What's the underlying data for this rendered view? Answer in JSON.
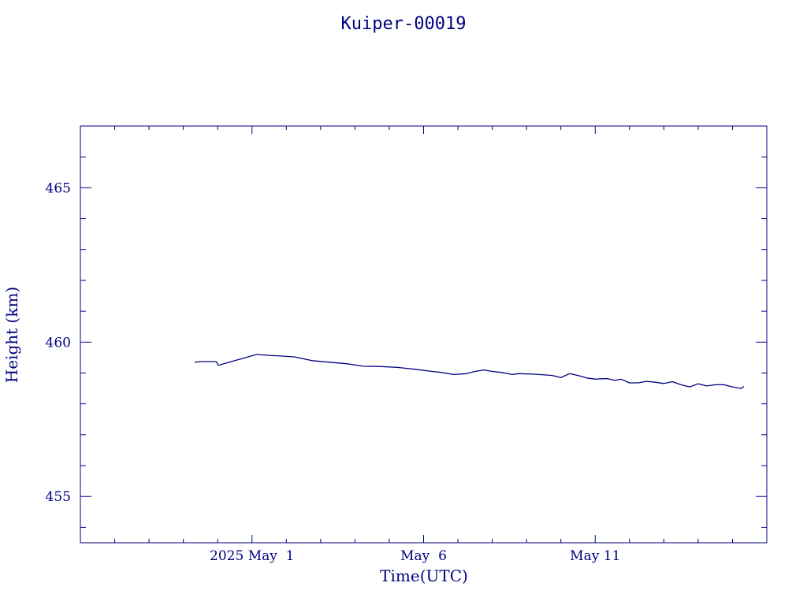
{
  "chart_data": {
    "type": "line",
    "title": "Kuiper-00019",
    "xlabel": "Time(UTC)",
    "ylabel": "Height (km)",
    "xlim": [
      "2025-04-26",
      "2025-05-16"
    ],
    "ylim": [
      453.5,
      467.0
    ],
    "x_tick_labels": [
      {
        "date": "2025-05-01",
        "label": "2025 May  1"
      },
      {
        "date": "2025-05-06",
        "label": "May  6"
      },
      {
        "date": "2025-05-11",
        "label": "May 11"
      }
    ],
    "y_tick_labels": [
      "455",
      "460",
      "465"
    ],
    "y_tick_values": [
      455,
      460,
      465
    ],
    "grid": false,
    "series": [
      {
        "color": "#000080",
        "points": [
          [
            "2025-04-29T08:00",
            459.35
          ],
          [
            "2025-04-29T12:00",
            459.37
          ],
          [
            "2025-04-29T18:00",
            459.37
          ],
          [
            "2025-04-29T23:00",
            459.37
          ],
          [
            "2025-04-30T00:30",
            459.25
          ],
          [
            "2025-04-30T06:00",
            459.32
          ],
          [
            "2025-04-30T12:00",
            459.4
          ],
          [
            "2025-04-30T18:00",
            459.48
          ],
          [
            "2025-05-01T03:00",
            459.6
          ],
          [
            "2025-05-01T12:00",
            459.57
          ],
          [
            "2025-05-01T20:00",
            459.55
          ],
          [
            "2025-05-02T06:00",
            459.52
          ],
          [
            "2025-05-02T18:00",
            459.4
          ],
          [
            "2025-05-03T06:00",
            459.35
          ],
          [
            "2025-05-03T18:00",
            459.3
          ],
          [
            "2025-05-04T06:00",
            459.22
          ],
          [
            "2025-05-04T18:00",
            459.21
          ],
          [
            "2025-05-05T06:00",
            459.18
          ],
          [
            "2025-05-05T18:00",
            459.12
          ],
          [
            "2025-05-06T06:00",
            459.05
          ],
          [
            "2025-05-06T12:00",
            459.02
          ],
          [
            "2025-05-06T21:00",
            458.95
          ],
          [
            "2025-05-07T06:00",
            458.98
          ],
          [
            "2025-05-07T12:00",
            459.05
          ],
          [
            "2025-05-07T18:00",
            459.1
          ],
          [
            "2025-05-08T00:00",
            459.05
          ],
          [
            "2025-05-08T06:00",
            459.02
          ],
          [
            "2025-05-08T14:00",
            458.95
          ],
          [
            "2025-05-08T18:00",
            458.98
          ],
          [
            "2025-05-09T06:00",
            458.96
          ],
          [
            "2025-05-09T18:00",
            458.92
          ],
          [
            "2025-05-10T00:00",
            458.85
          ],
          [
            "2025-05-10T06:00",
            458.98
          ],
          [
            "2025-05-10T12:00",
            458.92
          ],
          [
            "2025-05-10T18:00",
            458.84
          ],
          [
            "2025-05-11T00:00",
            458.8
          ],
          [
            "2025-05-11T08:00",
            458.82
          ],
          [
            "2025-05-11T14:00",
            458.76
          ],
          [
            "2025-05-11T18:00",
            458.8
          ],
          [
            "2025-05-12T00:00",
            458.68
          ],
          [
            "2025-05-12T06:00",
            458.68
          ],
          [
            "2025-05-12T12:00",
            458.73
          ],
          [
            "2025-05-12T18:00",
            458.7
          ],
          [
            "2025-05-13T00:00",
            458.66
          ],
          [
            "2025-05-13T06:00",
            458.72
          ],
          [
            "2025-05-13T12:00",
            458.62
          ],
          [
            "2025-05-13T18:00",
            458.55
          ],
          [
            "2025-05-14T00:00",
            458.65
          ],
          [
            "2025-05-14T06:00",
            458.58
          ],
          [
            "2025-05-14T12:00",
            458.62
          ],
          [
            "2025-05-14T18:00",
            458.62
          ],
          [
            "2025-05-15T00:00",
            458.55
          ],
          [
            "2025-05-15T06:00",
            458.5
          ],
          [
            "2025-05-15T08:00",
            458.56
          ]
        ]
      }
    ]
  }
}
